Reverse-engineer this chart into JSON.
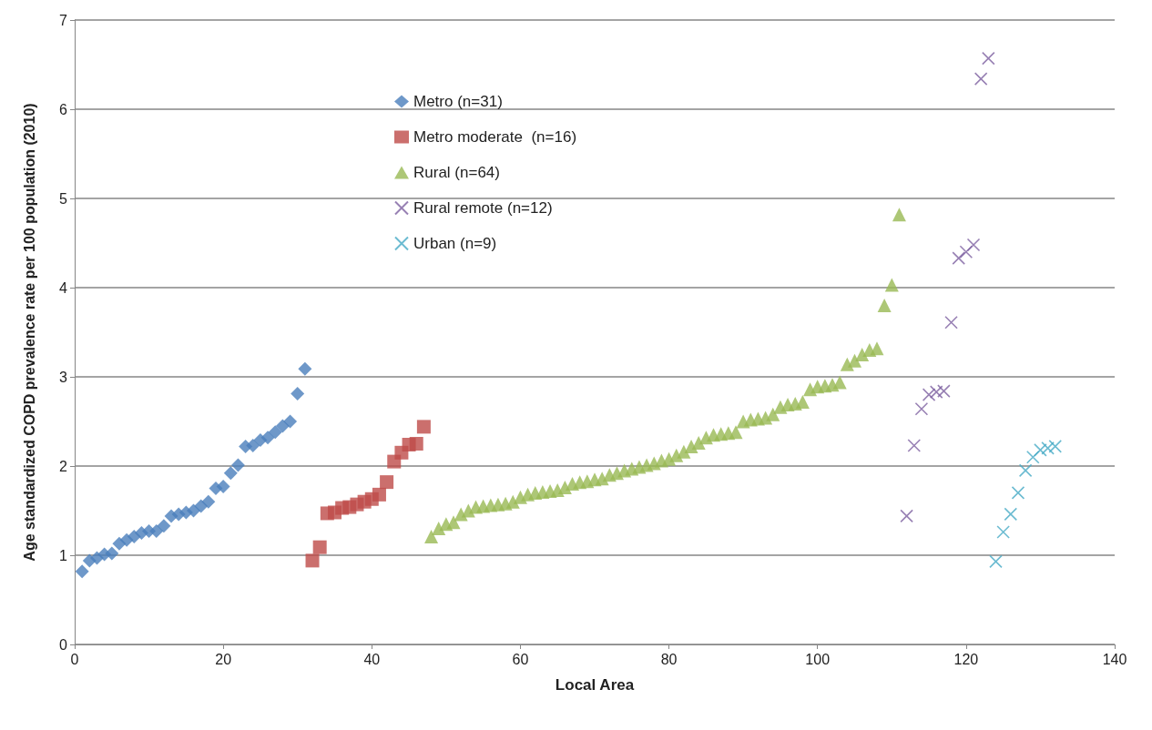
{
  "chart_data": {
    "type": "scatter",
    "xlabel": "Local Area",
    "ylabel": "Age standardized COPD prevalence rate per 100 population (2010)",
    "xlim": [
      0,
      140
    ],
    "xticks": [
      0,
      20,
      40,
      60,
      80,
      100,
      120,
      140
    ],
    "ylim": [
      0,
      7
    ],
    "yticks": [
      0,
      1,
      2,
      3,
      4,
      5,
      6,
      7
    ],
    "grid": "y",
    "legend": "top",
    "series": [
      {
        "name": "Metro (n=31)",
        "color": "#4a7ebb",
        "marker": "diamond",
        "x": [
          1,
          2,
          3,
          4,
          5,
          6,
          7,
          8,
          9,
          10,
          11,
          12,
          13,
          14,
          15,
          16,
          17,
          18,
          19,
          20,
          21,
          22,
          23,
          24,
          25,
          26,
          27,
          28,
          29,
          30,
          31
        ],
        "values": [
          0.82,
          0.94,
          0.97,
          1.01,
          1.02,
          1.13,
          1.17,
          1.21,
          1.25,
          1.27,
          1.27,
          1.33,
          1.44,
          1.46,
          1.48,
          1.5,
          1.55,
          1.6,
          1.75,
          1.77,
          1.92,
          2.01,
          2.22,
          2.23,
          2.29,
          2.32,
          2.38,
          2.45,
          2.5,
          2.81,
          3.09
        ]
      },
      {
        "name": "Metro moderate  (n=16)",
        "color": "#be4b48",
        "marker": "square",
        "x": [
          32,
          33,
          34,
          35,
          36,
          37,
          38,
          39,
          40,
          41,
          42,
          43,
          44,
          45,
          46,
          47
        ],
        "values": [
          0.94,
          1.09,
          1.47,
          1.48,
          1.53,
          1.54,
          1.57,
          1.6,
          1.63,
          1.68,
          1.82,
          2.05,
          2.15,
          2.24,
          2.25,
          2.44
        ]
      },
      {
        "name": "Rural (n=64)",
        "color": "#98b954",
        "marker": "triangle",
        "x": [
          48,
          49,
          50,
          51,
          52,
          53,
          54,
          55,
          56,
          57,
          58,
          59,
          60,
          61,
          62,
          63,
          64,
          65,
          66,
          67,
          68,
          69,
          70,
          71,
          72,
          73,
          74,
          75,
          76,
          77,
          78,
          79,
          80,
          81,
          82,
          83,
          84,
          85,
          86,
          87,
          88,
          89,
          90,
          91,
          92,
          93,
          94,
          95,
          96,
          97,
          98,
          99,
          100,
          101,
          102,
          103,
          104,
          105,
          106,
          107,
          108,
          109,
          110,
          111
        ],
        "values": [
          1.21,
          1.3,
          1.35,
          1.37,
          1.46,
          1.5,
          1.54,
          1.55,
          1.56,
          1.57,
          1.58,
          1.6,
          1.65,
          1.68,
          1.7,
          1.71,
          1.72,
          1.73,
          1.76,
          1.8,
          1.82,
          1.83,
          1.85,
          1.86,
          1.9,
          1.92,
          1.95,
          1.97,
          1.99,
          2.01,
          2.03,
          2.06,
          2.08,
          2.12,
          2.16,
          2.22,
          2.26,
          2.32,
          2.35,
          2.36,
          2.37,
          2.38,
          2.5,
          2.52,
          2.53,
          2.54,
          2.58,
          2.66,
          2.69,
          2.7,
          2.72,
          2.86,
          2.89,
          2.9,
          2.91,
          2.94,
          3.14,
          3.18,
          3.25,
          3.3,
          3.32,
          3.8,
          4.03,
          4.82
        ]
      },
      {
        "name": "Rural remote (n=12)",
        "color": "#7d60a0",
        "marker": "cross",
        "x": [
          112,
          113,
          114,
          115,
          116,
          117,
          118,
          119,
          120,
          121,
          122,
          123
        ],
        "values": [
          1.44,
          2.23,
          2.64,
          2.8,
          2.83,
          2.84,
          3.61,
          4.33,
          4.4,
          4.48,
          6.34,
          6.57
        ]
      },
      {
        "name": "Urban (n=9)",
        "color": "#46aac5",
        "marker": "cross",
        "x": [
          124,
          125,
          126,
          127,
          128,
          129,
          130,
          131,
          132
        ],
        "values": [
          0.93,
          1.26,
          1.46,
          1.7,
          1.95,
          2.1,
          2.18,
          2.2,
          2.22
        ]
      }
    ]
  }
}
